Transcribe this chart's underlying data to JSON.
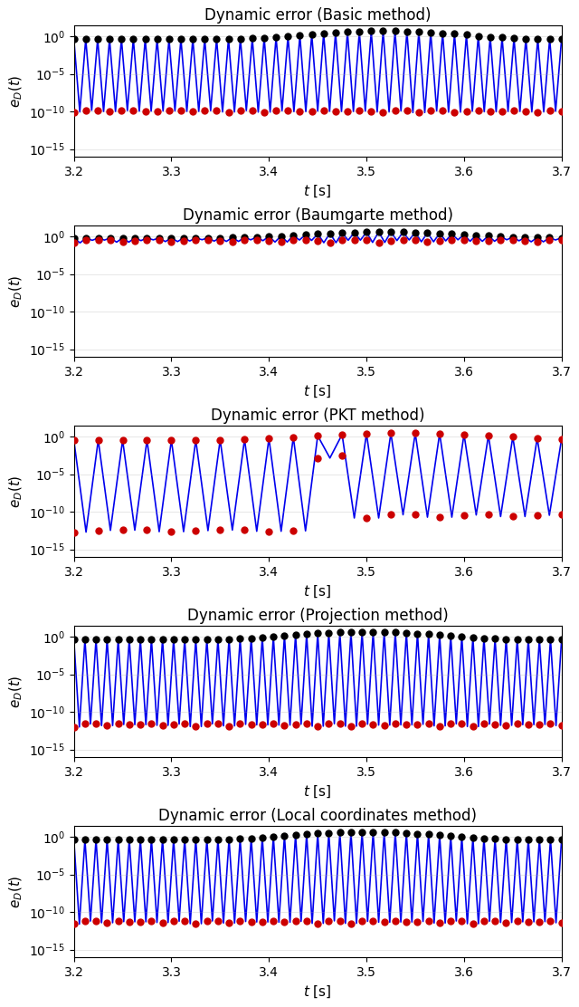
{
  "titles": [
    "Dynamic error (Basic method)",
    "Dynamic error (Baumgarte method)",
    "Dynamic error (PKT method)",
    "Dynamic error (Projection method)",
    "Dynamic error (Local coordinates method)"
  ],
  "xlim": [
    3.2,
    3.7
  ],
  "ylim_log": [
    1e-16,
    30.0
  ],
  "yticks": [
    1e-15,
    1e-10,
    1e-05,
    1.0
  ],
  "xticks": [
    3.2,
    3.3,
    3.4,
    3.5,
    3.6,
    3.7
  ],
  "line_color": "#0000EE",
  "dot_top_color": "#000000",
  "dot_bot_color": "#CC0000",
  "figsize": [
    6.4,
    11.12
  ],
  "dpi": 100
}
